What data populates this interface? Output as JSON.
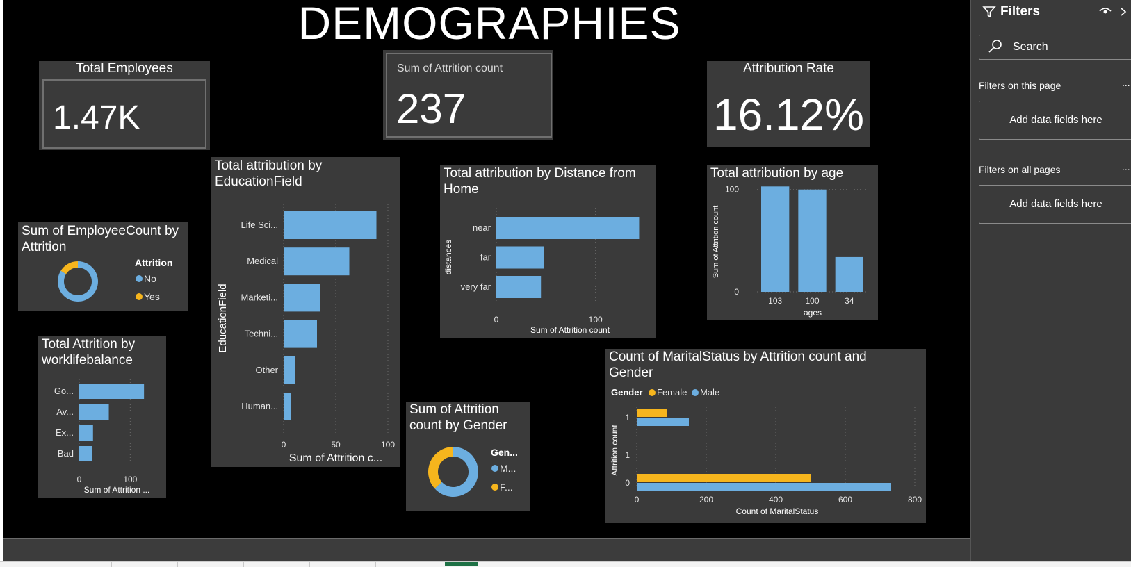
{
  "dashboard": {
    "title": "DEMOGRAPHIES"
  },
  "kpis": {
    "total_employees": {
      "label": "Total Employees",
      "value": "1.47K"
    },
    "attrition_count": {
      "label": "Sum of Attrition count",
      "value": "237"
    },
    "attrition_rate": {
      "label": "Attribution Rate",
      "value": "16.12%"
    }
  },
  "colors": {
    "blue": "#6caee0",
    "yellow": "#f6b51d",
    "card": "#3a3a3a",
    "canvas": "#000000"
  },
  "chart_data": [
    {
      "id": "employeecount_by_attrition",
      "type": "pie",
      "title": "Sum of EmployeeCount by Attrition",
      "legend_title": "Attrition",
      "categories": [
        "No",
        "Yes"
      ],
      "values": [
        1233,
        237
      ],
      "colors": [
        "#6caee0",
        "#f6b51d"
      ],
      "legend_position": "right"
    },
    {
      "id": "attrition_by_educationfield",
      "type": "bar",
      "orientation": "horizontal",
      "title": "Total attribution by EducationField",
      "categories": [
        "Life Sci...",
        "Medical",
        "Marketi...",
        "Techni...",
        "Other",
        "Human..."
      ],
      "values": [
        89,
        63,
        35,
        32,
        11,
        7
      ],
      "xlabel": "Sum of Attrition c...",
      "ylabel": "EducationField",
      "xlim": [
        0,
        100
      ],
      "xticks": [
        "0",
        "50",
        "100"
      ],
      "grid": true
    },
    {
      "id": "attrition_by_distance",
      "type": "bar",
      "orientation": "horizontal",
      "title": "Total attribution by Distance from Home",
      "categories": [
        "near",
        "far",
        "very far"
      ],
      "values": [
        144,
        48,
        45
      ],
      "xlabel": "Sum of Attrition count",
      "ylabel": "distances",
      "xlim": [
        0,
        150
      ],
      "xticks": [
        "0",
        "100"
      ],
      "grid": true
    },
    {
      "id": "attrition_by_age",
      "type": "bar",
      "orientation": "vertical",
      "title": "Total attribution by age",
      "categories": [
        "103",
        "100",
        "34"
      ],
      "values": [
        103,
        100,
        34
      ],
      "xlabel": "ages",
      "ylabel": "Sum of Attrition count",
      "ylim": [
        0,
        110
      ],
      "yticks": [
        "0",
        "100"
      ],
      "grid": true
    },
    {
      "id": "attrition_by_worklifebalance",
      "type": "bar",
      "orientation": "horizontal",
      "title": "Total Attrition by worklifebalance",
      "categories": [
        "Go...",
        "Av...",
        "Ex...",
        "Bad"
      ],
      "values": [
        127,
        58,
        27,
        25
      ],
      "xlabel": "Sum of Attrition ...",
      "xlim": [
        0,
        150
      ],
      "xticks": [
        "0",
        "100"
      ],
      "grid": true
    },
    {
      "id": "attrition_by_gender",
      "type": "pie",
      "title": "Sum of Attrition count by Gender",
      "legend_title": "Gen...",
      "categories": [
        "M...",
        "F..."
      ],
      "values": [
        150,
        87
      ],
      "colors": [
        "#6caee0",
        "#f6b51d"
      ],
      "legend_position": "right"
    },
    {
      "id": "maritalstatus_by_attrition_gender",
      "type": "bar",
      "orientation": "horizontal",
      "title": "Count of MaritalStatus by Attrition count and Gender",
      "legend_title": "Gender",
      "categories": [
        "1",
        "1",
        "0"
      ],
      "series": [
        {
          "name": "Female",
          "values": [
            87,
            0,
            501
          ],
          "color": "#f6b51d"
        },
        {
          "name": "Male",
          "values": [
            150,
            0,
            732
          ],
          "color": "#6caee0"
        }
      ],
      "xlabel": "Count of MaritalStatus",
      "ylabel": "Attrition count",
      "xlim": [
        0,
        800
      ],
      "xticks": [
        "0",
        "200",
        "400",
        "600",
        "800"
      ],
      "grid": true,
      "legend_position": "top-left"
    }
  ],
  "filters_pane": {
    "title": "Filters",
    "search_placeholder": "Search",
    "this_page_label": "Filters on this page",
    "all_pages_label": "Filters on all pages",
    "drop_hint": "Add data fields here",
    "more": "..."
  }
}
